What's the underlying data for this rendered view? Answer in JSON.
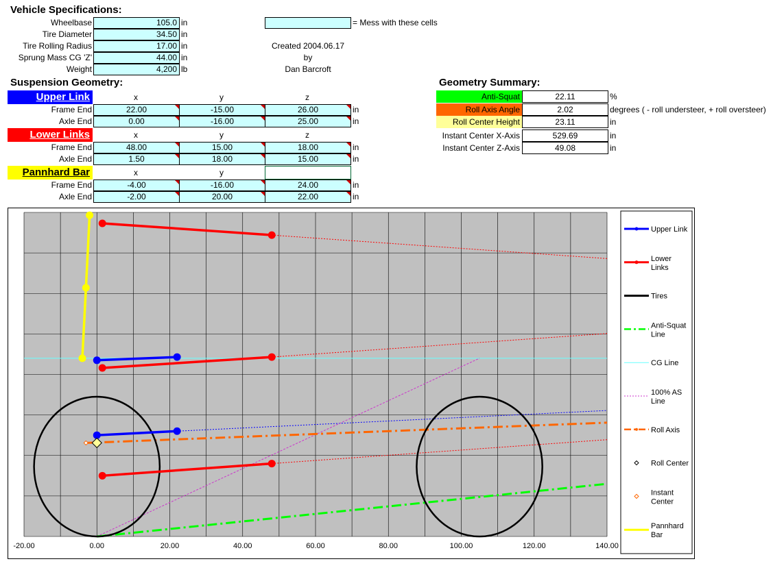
{
  "vehicle": {
    "title": "Vehicle Specifications:",
    "rows": [
      {
        "label": "Wheelbase",
        "value": "105.0",
        "unit": "in"
      },
      {
        "label": "Tire Diameter",
        "value": "34.50",
        "unit": "in"
      },
      {
        "label": "Tire Rolling Radius",
        "value": "17.00",
        "unit": "in"
      },
      {
        "label": "Sprung Mass CG 'Z'",
        "value": "44.00",
        "unit": "in"
      },
      {
        "label": "Weight",
        "value": "4,200",
        "unit": "lb"
      }
    ]
  },
  "legend_note": "= Mess with these cells",
  "credits": {
    "line1": "Created 2004.06.17",
    "line2": "by",
    "line3": "Dan Barcroft"
  },
  "suspension": {
    "title": "Suspension Geometry:",
    "upper": {
      "name": "Upper Link",
      "color": "#0000ff",
      "text_color": "#ffffff",
      "cols": [
        "x",
        "y",
        "z"
      ],
      "rows": [
        {
          "label": "Frame End",
          "x": "22.00",
          "y": "-15.00",
          "z": "26.00",
          "unit": "in"
        },
        {
          "label": "Axle End",
          "x": "0.00",
          "y": "-16.00",
          "z": "25.00",
          "unit": "in"
        }
      ]
    },
    "lower": {
      "name": "Lower Links",
      "color": "#ff0000",
      "text_color": "#ffffff",
      "cols": [
        "x",
        "y",
        "z"
      ],
      "rows": [
        {
          "label": "Frame End",
          "x": "48.00",
          "y": "15.00",
          "z": "18.00",
          "unit": "in"
        },
        {
          "label": "Axle End",
          "x": "1.50",
          "y": "18.00",
          "z": "15.00",
          "unit": "in"
        }
      ]
    },
    "pannhard": {
      "name": "Pannhard Bar",
      "color": "#ffff00",
      "text_color": "#000000",
      "cols": [
        "x",
        "y",
        ""
      ],
      "rows": [
        {
          "label": "Frame End",
          "x": "-4.00",
          "y": "-16.00",
          "z": "24.00",
          "unit": "in"
        },
        {
          "label": "Axle End",
          "x": "-2.00",
          "y": "20.00",
          "z": "22.00",
          "unit": "in"
        }
      ]
    }
  },
  "summary": {
    "title": "Geometry Summary:",
    "rows": [
      {
        "label": "Anti-Squat",
        "value": "22.11",
        "unit": "%",
        "bg": "#00ff00"
      },
      {
        "label": "Roll Axis Angle",
        "value": "2.02",
        "unit": "degrees ( - roll understeer, + roll oversteer)",
        "bg": "#ff6600"
      },
      {
        "label": "Roll Center Height",
        "value": "23.11",
        "unit": "in",
        "bg": "#ffff99"
      },
      {
        "label": "Instant Center X-Axis",
        "value": "529.69",
        "unit": "in",
        "bg": "#ffffff"
      },
      {
        "label": "Instant Center Z-Axis",
        "value": "49.08",
        "unit": "in",
        "bg": "#ffffff"
      }
    ]
  },
  "chart_data": {
    "type": "scatter",
    "xlim": [
      -20,
      140
    ],
    "ylim": [
      0,
      80
    ],
    "x_ticks": [
      "-20.00",
      "0.00",
      "20.00",
      "40.00",
      "60.00",
      "80.00",
      "100.00",
      "120.00",
      "140.00"
    ],
    "grid": true,
    "legend_placement": "right",
    "plot_bg": "#c0c0c0",
    "series": [
      {
        "name": "Upper Link",
        "color": "#0000ff",
        "style": "solid-marker",
        "segments": [
          [
            [
              0.0,
              43.5
            ],
            [
              22.0,
              44.3
            ]
          ],
          [
            [
              0.0,
              25.0
            ],
            [
              22.0,
              26.0
            ]
          ]
        ]
      },
      {
        "name": "Lower Links",
        "color": "#ff0000",
        "style": "solid-marker",
        "segments": [
          [
            [
              1.5,
              77.3
            ],
            [
              48.0,
              74.4
            ]
          ],
          [
            [
              1.5,
              41.6
            ],
            [
              48.0,
              44.3
            ]
          ],
          [
            [
              1.5,
              15.0
            ],
            [
              48.0,
              18.0
            ]
          ]
        ]
      },
      {
        "name": "Tires",
        "color": "#000000",
        "style": "circle",
        "circles": [
          {
            "cx": 0.0,
            "cy": 17.25,
            "r": 17.25
          },
          {
            "cx": 105.0,
            "cy": 17.25,
            "r": 17.25
          }
        ]
      },
      {
        "name": "Anti-Squat Line",
        "color": "#00ff00",
        "style": "dashdot",
        "line": [
          [
            0.0,
            0.0
          ],
          [
            140.0,
            13.0
          ]
        ]
      },
      {
        "name": "CG Line",
        "color": "#66ffff",
        "style": "thin",
        "line": [
          [
            -20.0,
            44.0
          ],
          [
            140.0,
            44.0
          ]
        ]
      },
      {
        "name": "100% AS Line",
        "color": "#cc33cc",
        "style": "dotted",
        "line": [
          [
            0.0,
            0.0
          ],
          [
            105.0,
            44.0
          ]
        ]
      },
      {
        "name": "Roll Axis",
        "color": "#ff6600",
        "style": "dashdot-thick",
        "line": [
          [
            -3.0,
            23.1
          ],
          [
            140.0,
            28.1
          ]
        ]
      },
      {
        "name": "Roll Center",
        "color": "#000000",
        "style": "diamond",
        "points": [
          [
            0.0,
            23.11
          ]
        ]
      },
      {
        "name": "Instant Center",
        "color": "#ff6600",
        "style": "diamond-small",
        "points": [
          [
            -3.0,
            23.1
          ]
        ]
      },
      {
        "name": "Pannhard Bar",
        "color": "#ffff00",
        "style": "solid-marker",
        "segments": [
          [
            [
              -2.0,
              79.3
            ],
            [
              -3.0,
              61.4
            ],
            [
              -4.0,
              44.0
            ]
          ]
        ]
      }
    ],
    "extension_lines": [
      {
        "color": "#ff0000",
        "from": [
          48.0,
          74.4
        ],
        "to": [
          140.0,
          68.6
        ]
      },
      {
        "color": "#ff0000",
        "from": [
          48.0,
          44.3
        ],
        "to": [
          140.0,
          50.1
        ]
      },
      {
        "color": "#ff0000",
        "from": [
          48.0,
          18.0
        ],
        "to": [
          140.0,
          23.9
        ]
      },
      {
        "color": "#0000ff",
        "from": [
          22.0,
          26.0
        ],
        "to": [
          140.0,
          31.1
        ]
      }
    ]
  }
}
